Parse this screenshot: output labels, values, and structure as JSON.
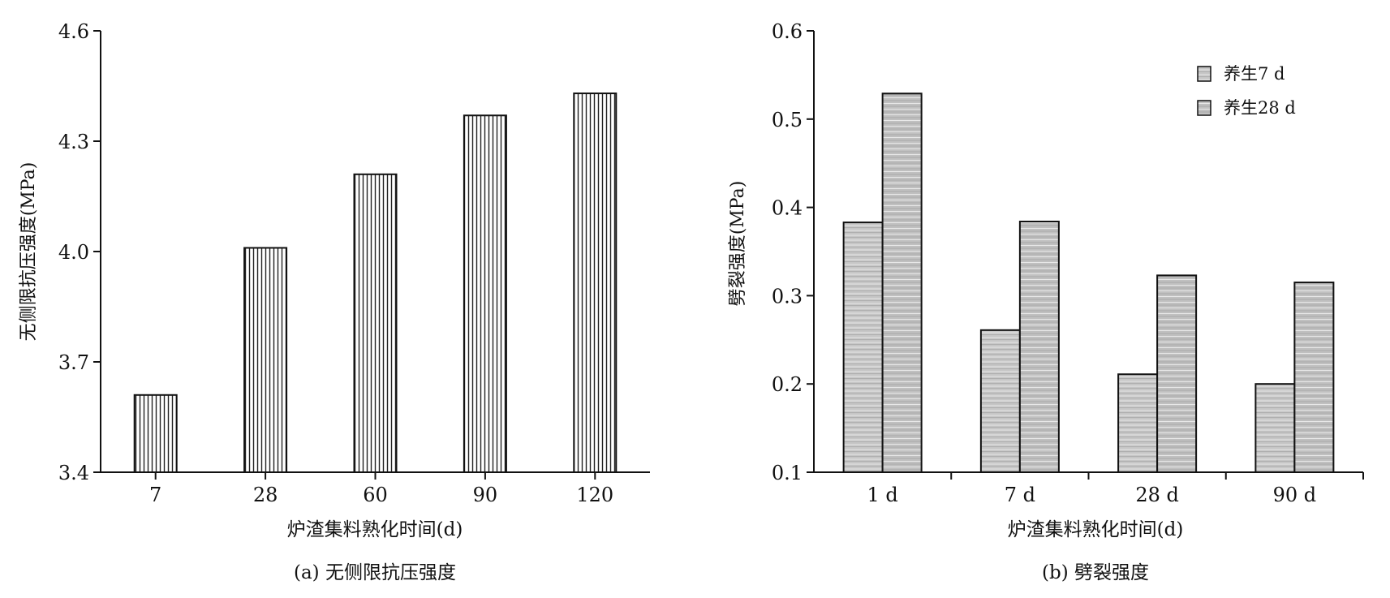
{
  "chart_data": [
    {
      "type": "bar",
      "panel": "a",
      "caption": "(a) 无侧限抗压强度",
      "xlabel": "炉渣集料熟化时间(d)",
      "ylabel": "无侧限抗压强度(MPa)",
      "categories": [
        "7",
        "28",
        "60",
        "90",
        "120"
      ],
      "values": [
        3.61,
        4.01,
        4.21,
        4.37,
        4.43
      ],
      "ylim": [
        3.4,
        4.6
      ],
      "yticks": [
        "3.4",
        "3.7",
        "4.0",
        "4.3",
        "4.6"
      ],
      "grid": false,
      "bar_color": "#ffffff"
    },
    {
      "type": "bar",
      "panel": "b",
      "caption": "(b) 劈裂强度",
      "xlabel": "炉渣集料熟化时间(d)",
      "ylabel": "劈裂强度(MPa)",
      "categories": [
        "1 d",
        "7 d",
        "28 d",
        "90 d"
      ],
      "series": [
        {
          "name": "养生7 d",
          "values": [
            0.383,
            0.261,
            0.211,
            0.2
          ],
          "color": "#c8c8c8"
        },
        {
          "name": "养生28 d",
          "values": [
            0.529,
            0.384,
            0.323,
            0.315
          ],
          "color": "#c2c2c2"
        }
      ],
      "ylim": [
        0.1,
        0.6
      ],
      "yticks": [
        "0.1",
        "0.2",
        "0.3",
        "0.4",
        "0.5",
        "0.6"
      ],
      "grid": false,
      "legend": "top-right"
    }
  ]
}
